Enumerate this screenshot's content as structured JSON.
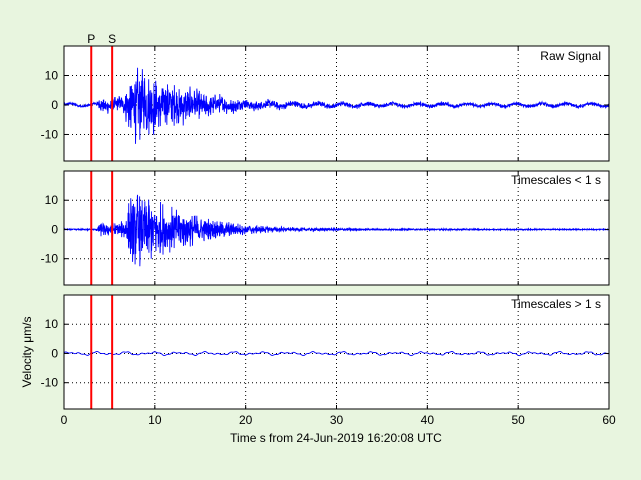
{
  "chart_data": [
    {
      "type": "line",
      "panel": "raw",
      "title": "Raw Signal",
      "xlabel": "",
      "ylabel": "",
      "xlim": [
        0,
        60
      ],
      "ylim": [
        -19,
        20
      ],
      "yticks": [
        -10,
        0,
        10
      ],
      "grid": true,
      "series_color": "#0000ff",
      "phase_markers": [
        {
          "label": "P",
          "t": 3.0
        },
        {
          "label": "S",
          "t": 5.3
        }
      ],
      "envelope": [
        {
          "t": 0,
          "amp": 0.4
        },
        {
          "t": 3.5,
          "amp": 0.5
        },
        {
          "t": 4.0,
          "amp": 2.5
        },
        {
          "t": 6.5,
          "amp": 3.0
        },
        {
          "t": 7.5,
          "amp": 14.0
        },
        {
          "t": 9.0,
          "amp": 12.0
        },
        {
          "t": 12.0,
          "amp": 8.0
        },
        {
          "t": 16.0,
          "amp": 4.0
        },
        {
          "t": 20.0,
          "amp": 2.0
        },
        {
          "t": 25.0,
          "amp": 1.2
        },
        {
          "t": 30.0,
          "amp": 0.9
        },
        {
          "t": 40.0,
          "amp": 0.7
        },
        {
          "t": 60.0,
          "amp": 0.6
        }
      ]
    },
    {
      "type": "line",
      "panel": "hp",
      "title": "Timescales < 1 s",
      "xlabel": "",
      "ylabel": "",
      "xlim": [
        0,
        60
      ],
      "ylim": [
        -19,
        20
      ],
      "yticks": [
        -10,
        0,
        10
      ],
      "grid": true,
      "series_color": "#0000ff",
      "phase_markers": [
        {
          "label": "P",
          "t": 3.0
        },
        {
          "label": "S",
          "t": 5.3
        }
      ],
      "envelope": [
        {
          "t": 0,
          "amp": 0.2
        },
        {
          "t": 3.5,
          "amp": 0.3
        },
        {
          "t": 4.0,
          "amp": 2.5
        },
        {
          "t": 6.5,
          "amp": 3.0
        },
        {
          "t": 7.5,
          "amp": 14.5
        },
        {
          "t": 9.0,
          "amp": 12.0
        },
        {
          "t": 12.0,
          "amp": 8.0
        },
        {
          "t": 16.0,
          "amp": 4.0
        },
        {
          "t": 20.0,
          "amp": 1.8
        },
        {
          "t": 25.0,
          "amp": 0.8
        },
        {
          "t": 30.0,
          "amp": 0.5
        },
        {
          "t": 40.0,
          "amp": 0.3
        },
        {
          "t": 60.0,
          "amp": 0.2
        }
      ]
    },
    {
      "type": "line",
      "panel": "lp",
      "title": "Timescales > 1 s",
      "xlabel": "Time s from 24-Jun-2019 16:20:08 UTC",
      "ylabel": "Velocity μm/s",
      "xlim": [
        0,
        60
      ],
      "ylim": [
        -19,
        20
      ],
      "yticks": [
        -10,
        0,
        10
      ],
      "xticks": [
        0,
        10,
        20,
        30,
        40,
        50,
        60
      ],
      "grid": true,
      "series_color": "#0000ff",
      "phase_markers": [
        {
          "label": "P",
          "t": 3.0
        },
        {
          "label": "S",
          "t": 5.3
        }
      ],
      "envelope": [
        {
          "t": 0,
          "amp": 0.6
        },
        {
          "t": 60.0,
          "amp": 0.6
        }
      ]
    }
  ]
}
